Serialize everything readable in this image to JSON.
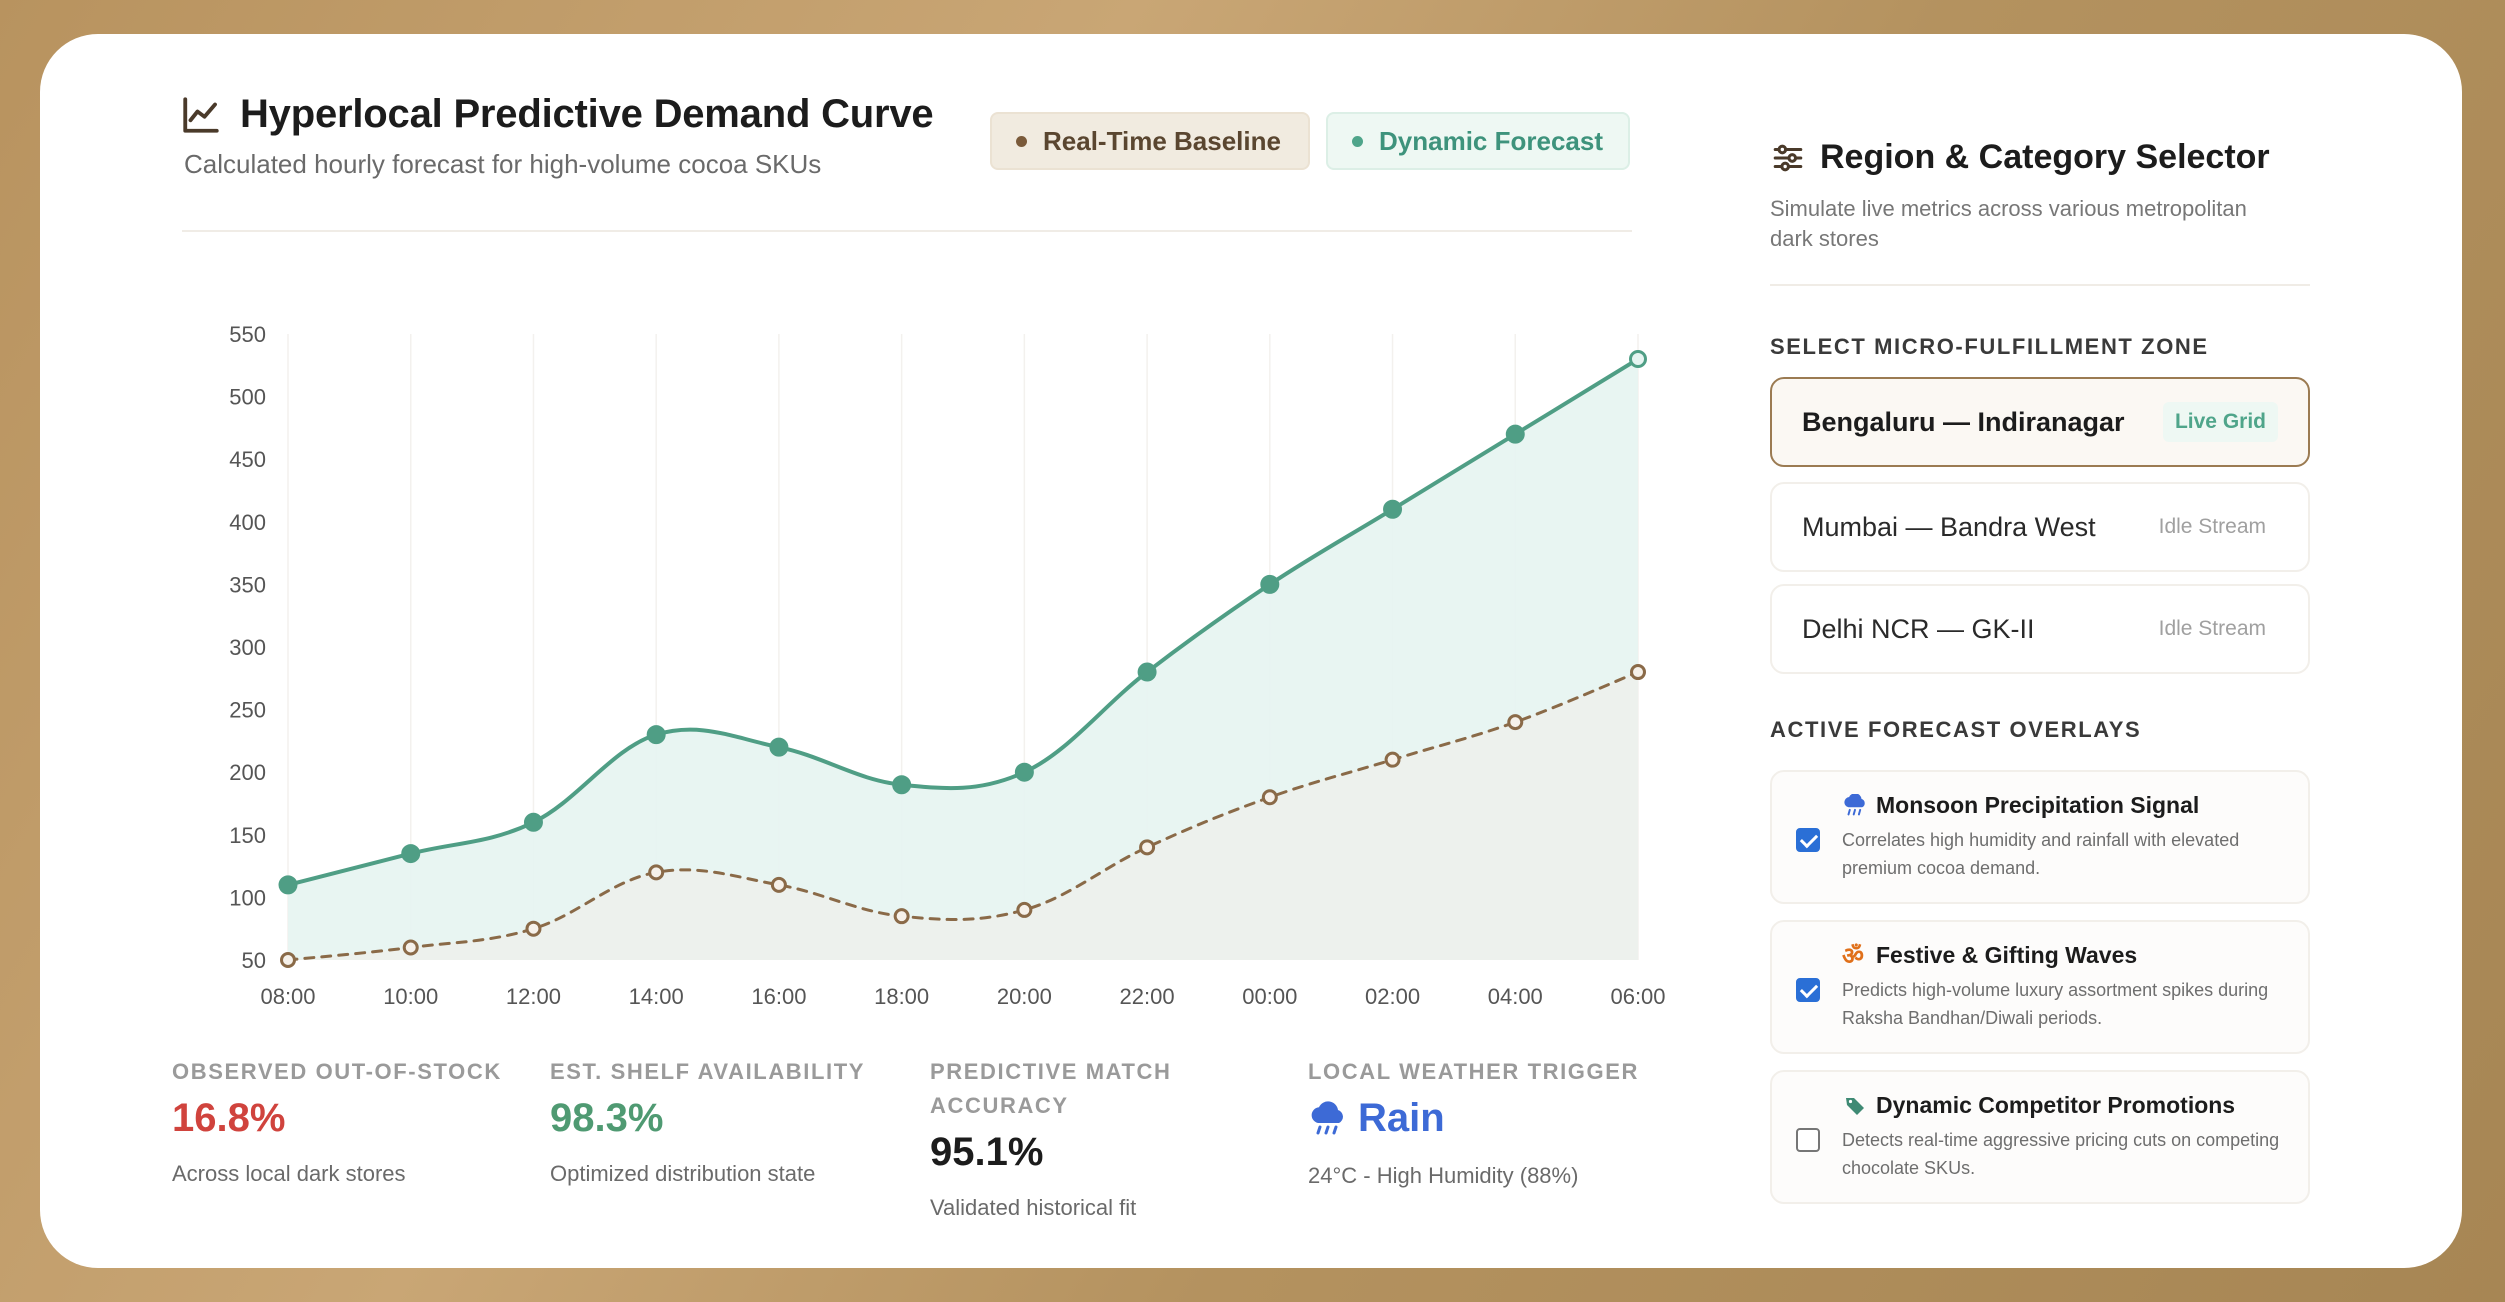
{
  "chart_panel": {
    "title": "Hyperlocal Predictive Demand Curve",
    "subtitle": "Calculated hourly forecast for high-volume cocoa SKUs",
    "icon": "line-chart-icon",
    "legend": {
      "baseline_label": "Real-Time Baseline",
      "forecast_label": "Dynamic Forecast"
    }
  },
  "chart_data": {
    "type": "line",
    "x": [
      "08:00",
      "10:00",
      "12:00",
      "14:00",
      "16:00",
      "18:00",
      "20:00",
      "22:00",
      "00:00",
      "02:00",
      "04:00",
      "06:00"
    ],
    "series": [
      {
        "name": "Dynamic Forecast",
        "values": [
          110,
          135,
          160,
          230,
          220,
          190,
          200,
          280,
          350,
          410,
          470,
          530
        ],
        "color": "#4f9e85",
        "style": "solid",
        "fill": "#e6f4f1"
      },
      {
        "name": "Real-Time Baseline",
        "values": [
          50,
          60,
          75,
          120,
          110,
          85,
          90,
          140,
          180,
          210,
          240,
          280
        ],
        "color": "#8a6a48",
        "style": "dashed",
        "fill": "#edf1ec"
      }
    ],
    "yticks": [
      50,
      100,
      150,
      200,
      250,
      300,
      350,
      400,
      450,
      500,
      550
    ],
    "ylim": [
      50,
      550
    ],
    "grid": "vertical-subtle",
    "title": "",
    "xlabel": "",
    "ylabel": ""
  },
  "metrics": [
    {
      "label": "OBSERVED OUT-OF-STOCK",
      "value": "16.8%",
      "note": "Across local dark stores",
      "color": "#d0433d"
    },
    {
      "label": "EST. SHELF AVAILABILITY",
      "value": "98.3%",
      "note": "Optimized distribution state",
      "color": "#4f9a72"
    },
    {
      "label_line1": "PREDICTIVE MATCH",
      "label_line2": "ACCURACY",
      "value": "95.1%",
      "note": "Validated historical fit",
      "color": "#1c1c1c"
    },
    {
      "label": "LOCAL WEATHER TRIGGER",
      "value": "Rain",
      "icon": "rain-cloud-icon",
      "note": "24°C - High Humidity (88%)",
      "color": "#3d6ad6"
    }
  ],
  "selector": {
    "title": "Region & Category Selector",
    "icon": "sliders-icon",
    "subtitle_line1": "Simulate live metrics across various metropolitan",
    "subtitle_line2": "dark stores",
    "zone_label": "SELECT MICRO-FULFILLMENT ZONE",
    "zones": [
      {
        "name": "Bengaluru — Indiranagar",
        "tag": "Live Grid",
        "active": true
      },
      {
        "name": "Mumbai — Bandra West",
        "tag": "Idle Stream",
        "active": false
      },
      {
        "name": "Delhi NCR — GK-II",
        "tag": "Idle Stream",
        "active": false
      }
    ],
    "overlays_label": "ACTIVE FORECAST OVERLAYS",
    "overlays": [
      {
        "title": "Monsoon Precipitation Signal",
        "icon": "rain-cloud-icon",
        "desc": "Correlates high humidity and rainfall with elevated premium cocoa demand.",
        "checked": true
      },
      {
        "title": "Festive & Gifting Waves",
        "icon": "om-festive-icon",
        "desc": "Predicts high-volume luxury assortment spikes during Raksha Bandhan/Diwali periods.",
        "checked": true
      },
      {
        "title": "Dynamic Competitor Promotions",
        "icon": "price-tag-icon",
        "desc": "Detects real-time aggressive pricing cuts on competing chocolate SKUs.",
        "checked": false
      }
    ]
  }
}
